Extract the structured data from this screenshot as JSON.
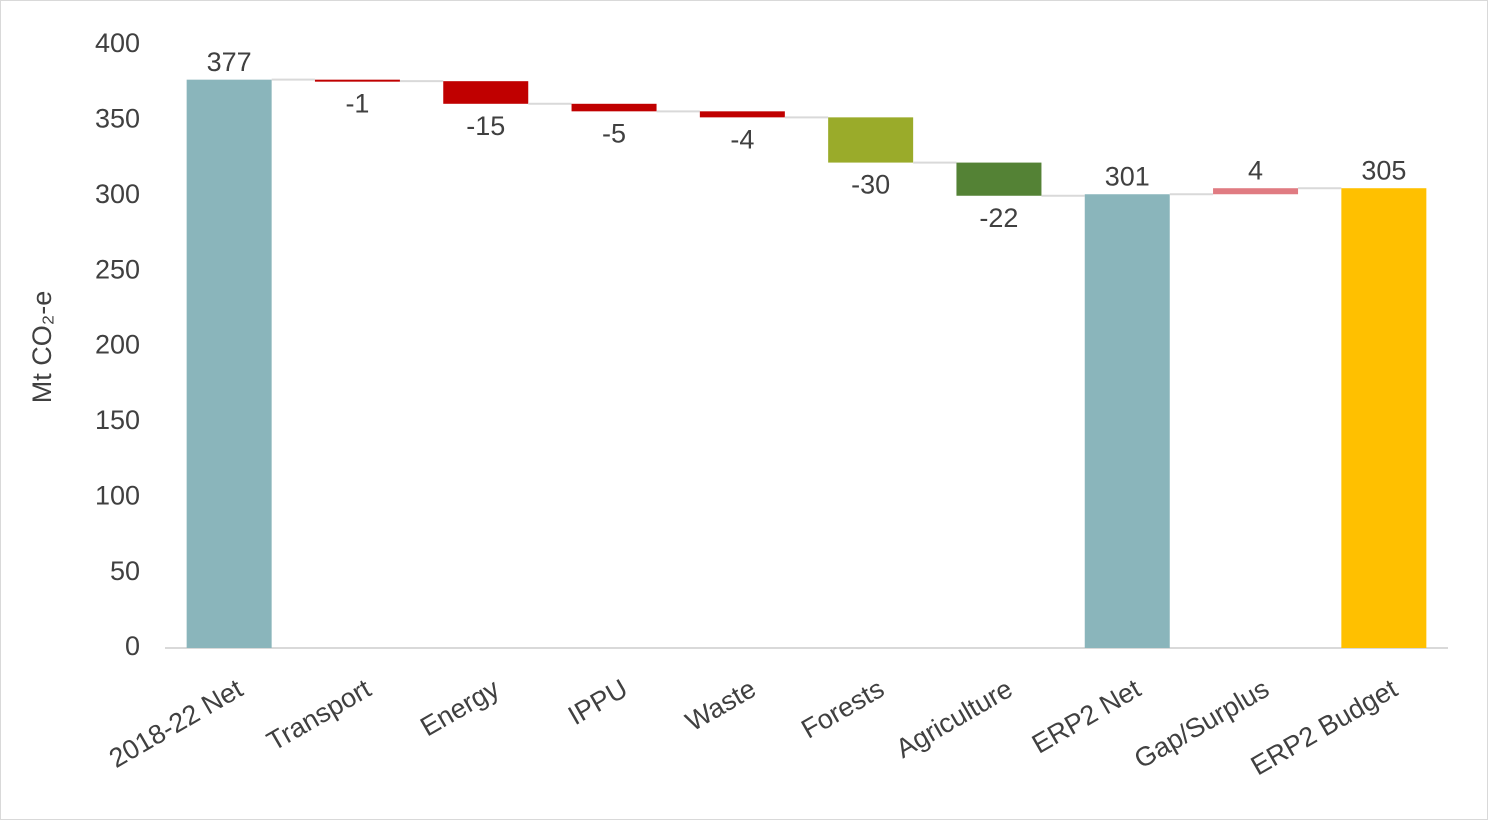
{
  "chart_data": {
    "type": "waterfall",
    "y_label": "Mt CO₂-e",
    "categories": [
      "2018-22 Net",
      "Transport",
      "Energy",
      "IPPU",
      "Waste",
      "Forests",
      "Agriculture",
      "ERP2 Net",
      "Gap/Surplus",
      "ERP2 Budget"
    ],
    "values": [
      377,
      -1,
      -15,
      -5,
      -4,
      -30,
      -22,
      301,
      4,
      305
    ],
    "measures": [
      "total",
      "relative",
      "relative",
      "relative",
      "relative",
      "relative",
      "relative",
      "total",
      "relative",
      "total"
    ],
    "colors": [
      "#8ab5bb",
      "#c00000",
      "#c00000",
      "#c00000",
      "#c00000",
      "#9aab2a",
      "#548235",
      "#8ab5bb",
      "#e07b82",
      "#ffc000"
    ],
    "ylim": [
      0,
      400
    ],
    "yticks": [
      0,
      50,
      100,
      150,
      200,
      250,
      300,
      350,
      400
    ]
  }
}
